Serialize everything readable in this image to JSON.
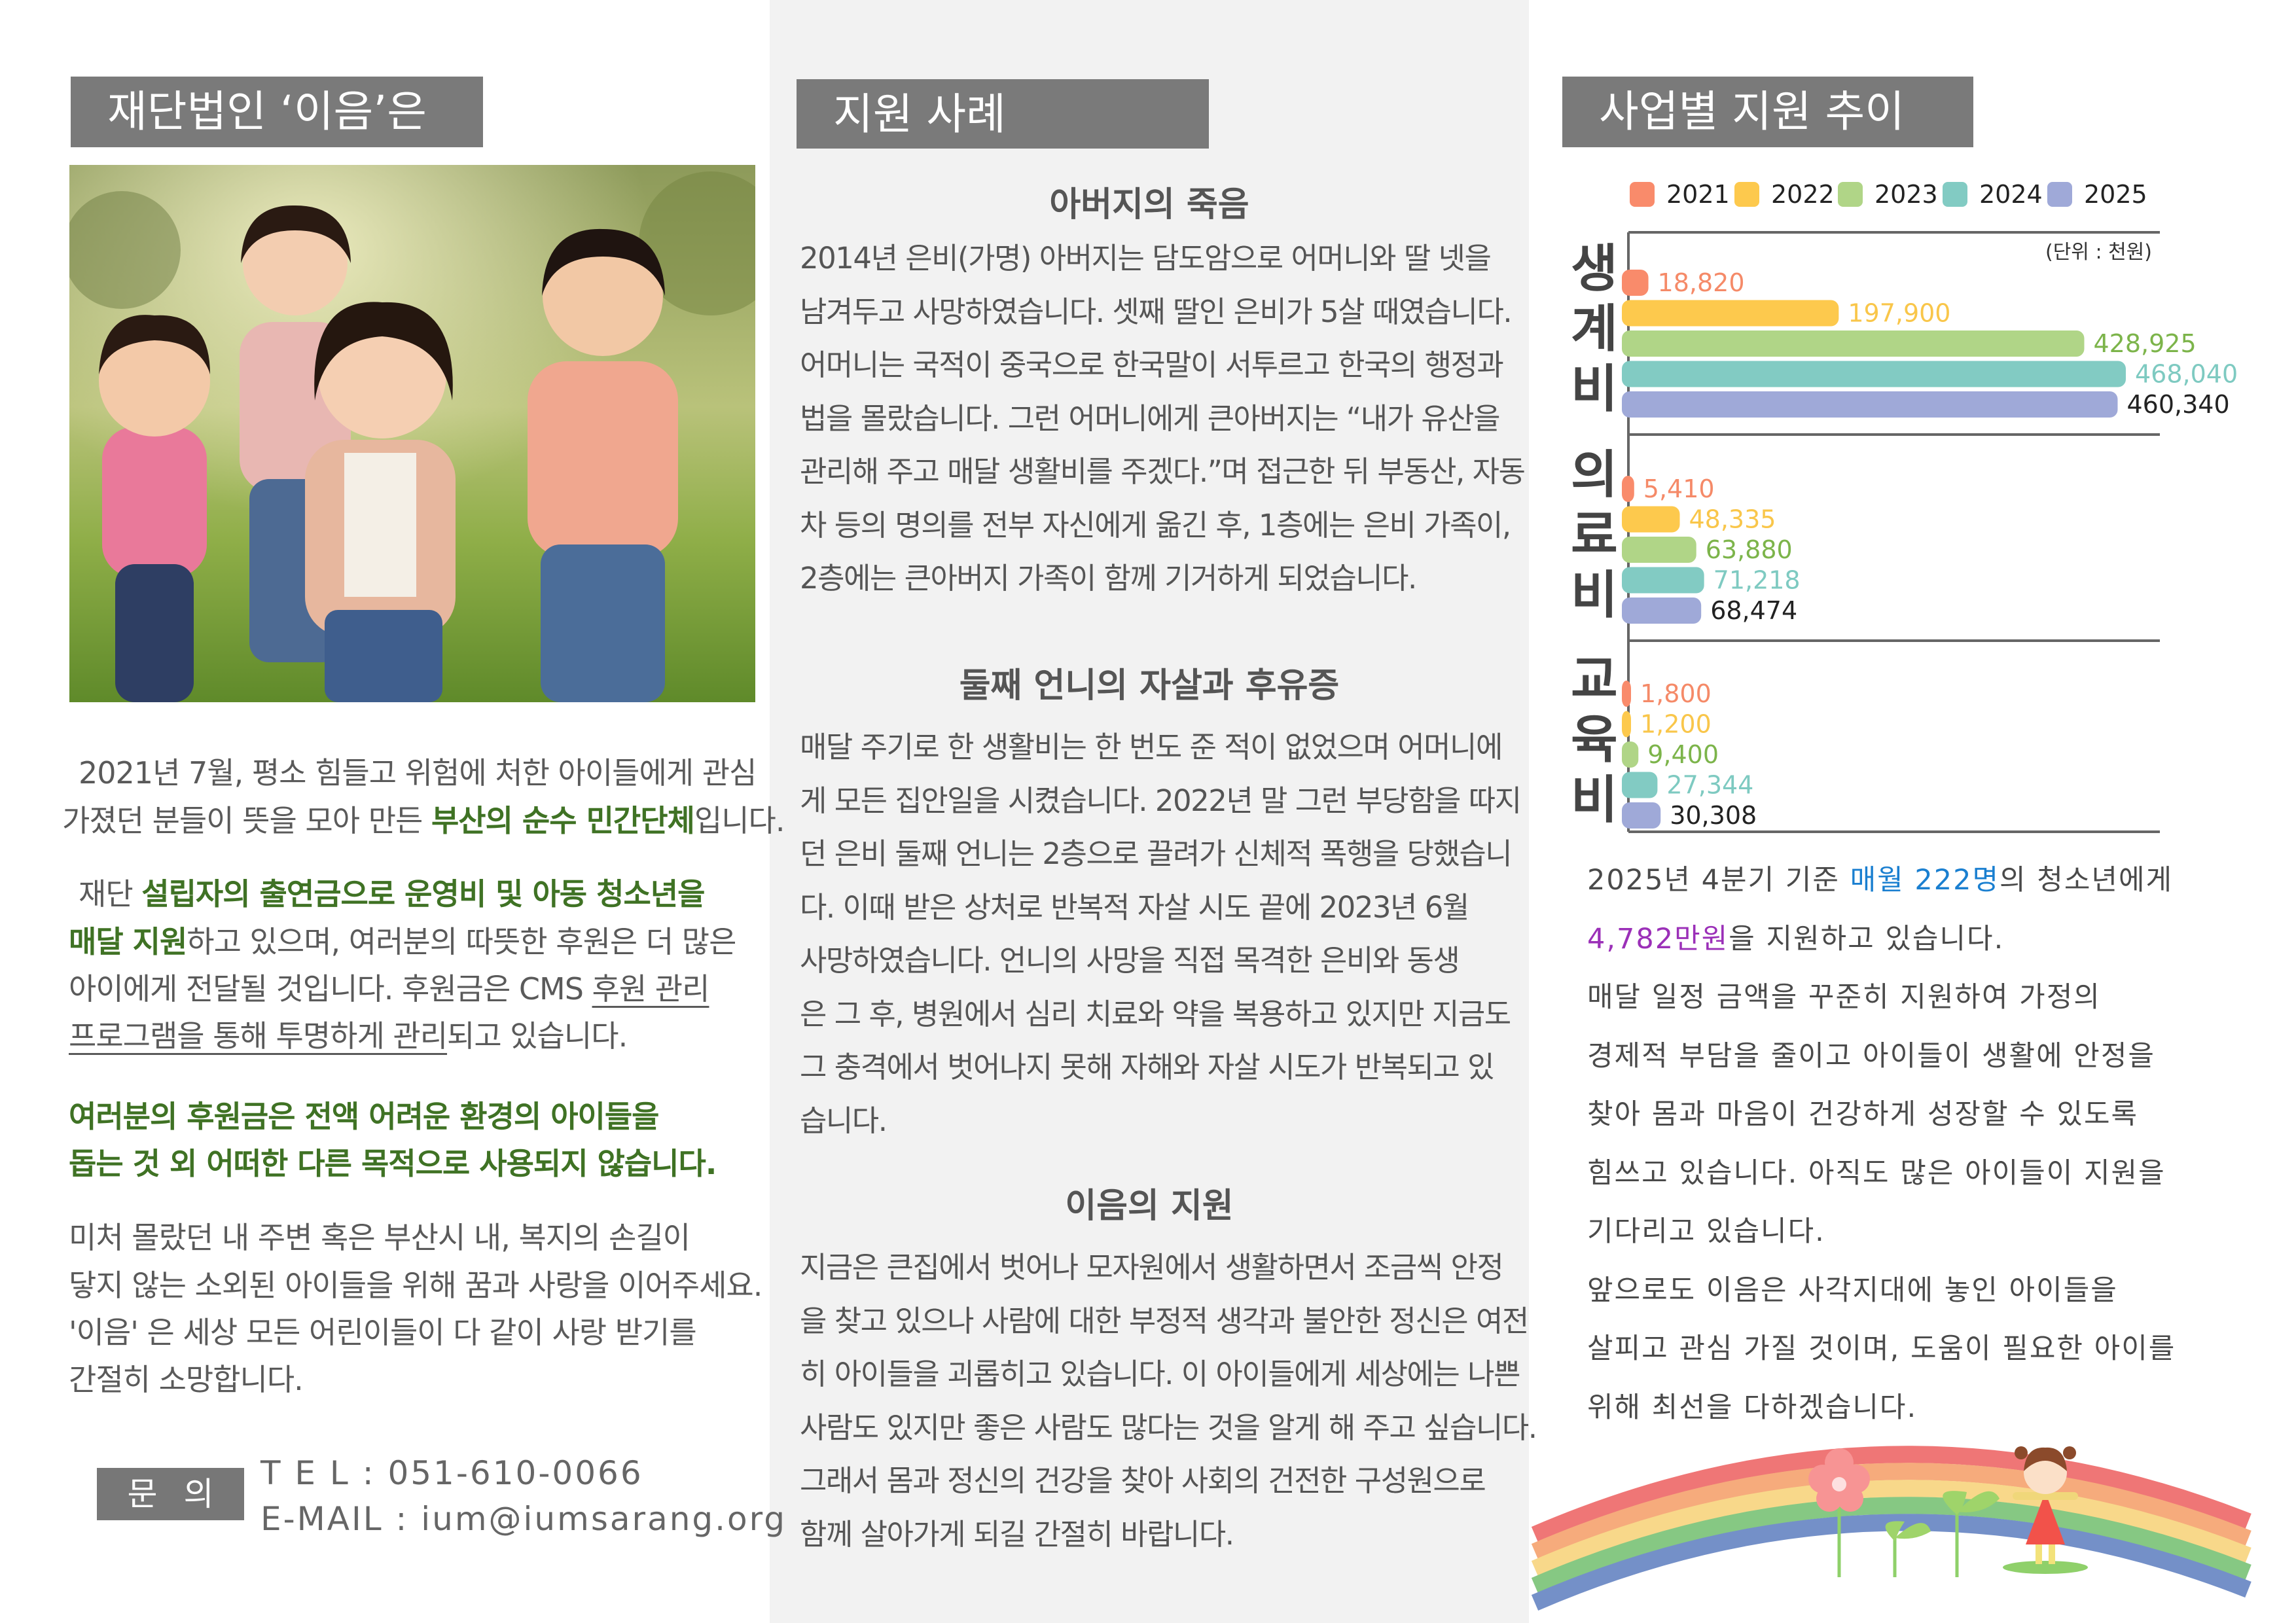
{
  "left": {
    "title": "재단법인 ‘이음’은",
    "photo_alt": "children-playing-photo",
    "paragraphs": [
      [
        [
          {
            "t": "2021년 7월, 평소 힘들고 위험에 처한 아이들에게 관심"
          }
        ],
        [
          {
            "t": "가졌던 분들이 뜻을 모아 만든 "
          },
          {
            "t": "부산의 순수 민간단체",
            "s": "g"
          },
          {
            "t": "입니다."
          }
        ]
      ],
      [
        [
          {
            "t": "재단 "
          },
          {
            "t": "설립자의 출연금으로 운영비 및 아동 청소년을",
            "s": "g"
          }
        ],
        [
          {
            "t": "매달 지원",
            "s": "g"
          },
          {
            "t": "하고 있으며, 여러분의 따뜻한 후원은 더 많은"
          }
        ],
        [
          {
            "t": "아이에게 전달될 것입니다. 후원금은 CMS "
          },
          {
            "t": "후원 관리",
            "s": "u"
          }
        ],
        [
          {
            "t": "프로그램을 통해 투명하게 관리",
            "s": "u"
          },
          {
            "t": "되고 있습니다."
          }
        ]
      ],
      [
        [
          {
            "t": "여러분의 후원금은 전액 어려운 환경의 아이들을",
            "s": "g"
          }
        ],
        [
          {
            "t": "돕는 것 외 어떠한 다른 목적으로 사용되지 않습니다.",
            "s": "g"
          }
        ]
      ],
      [
        [
          {
            "t": "미처 몰랐던 내 주변 혹은 부산시 내, 복지의 손길이"
          }
        ],
        [
          {
            "t": "닿지 않는 소외된 아이들을 위해 꿈과 사랑을 이어주세요."
          }
        ],
        [
          {
            "t": "'이음' 은 세상 모든 어린이들이 다 같이 사랑 받기를"
          }
        ],
        [
          {
            "t": "간절히 소망합니다."
          }
        ]
      ]
    ],
    "contact": {
      "label": "문의",
      "tel_label": "T E L",
      "tel": "051-610-0066",
      "email_label": "E-MAIL",
      "email": "ium@iumsarang.org"
    }
  },
  "middle": {
    "title": "지원 사례",
    "sections": [
      {
        "heading": "아버지의 죽음",
        "lines": [
          " 2014년 은비(가명) 아버지는 담도암으로 어머니와 딸 넷을",
          "남겨두고 사망하였습니다. 셋째 딸인 은비가 5살 때였습니다.",
          "어머니는 국적이 중국으로 한국말이 서투르고 한국의 행정과",
          "법을 몰랐습니다. 그런 어머니에게 큰아버지는 “내가 유산을",
          "관리해 주고 매달 생활비를 주겠다.”며 접근한 뒤 부동산, 자동",
          "차 등의 명의를 전부 자신에게 옮긴 후, 1층에는 은비 가족이,",
          "2층에는 큰아버지 가족이 함께 기거하게 되었습니다."
        ]
      },
      {
        "heading": "둘째 언니의 자살과 후유증",
        "lines": [
          " 매달 주기로 한 생활비는 한 번도 준 적이 없었으며 어머니에",
          "게 모든 집안일을 시켰습니다. 2022년 말 그런 부당함을 따지",
          "던 은비 둘째 언니는 2층으로 끌려가 신체적 폭행을 당했습니",
          "다. 이때 받은 상처로 반복적 자살 시도 끝에 2023년 6월",
          "사망하였습니다.  언니의 사망을 직접 목격한 은비와 동생",
          "은 그 후, 병원에서 심리 치료와 약을 복용하고 있지만 지금도",
          "그 충격에서 벗어나지 못해 자해와 자살 시도가 반복되고 있",
          "습니다."
        ]
      },
      {
        "heading": "이음의 지원",
        "lines": [
          " 지금은 큰집에서 벗어나 모자원에서 생활하면서 조금씩 안정",
          "을 찾고 있으나 사람에 대한 부정적 생각과 불안한 정신은 여전",
          "히 아이들을 괴롭히고 있습니다. 이 아이들에게 세상에는 나쁜",
          "사람도 있지만 좋은 사람도 많다는 것을 알게 해 주고 싶습니다.",
          "그래서 몸과 정신의 건강을 찾아 사회의 건전한 구성원으로",
          "함께 살아가게 되길 간절히 바랍니다."
        ]
      }
    ]
  },
  "right": {
    "title": "사업별 지원 추이",
    "paragraph_lines": [
      [
        {
          "t": "2025년 4분기 기준 "
        },
        {
          "t": "매월 222명",
          "s": "b"
        },
        {
          "t": "의 청소년에게"
        }
      ],
      [
        {
          "t": "4,782만원",
          "s": "p"
        },
        {
          "t": "을 지원하고 있습니다."
        }
      ],
      [
        {
          "t": "  매달 일정 금액을 꾸준히 지원하여 가정의"
        }
      ],
      [
        {
          "t": "경제적 부담을 줄이고 아이들이 생활에 안정을"
        }
      ],
      [
        {
          "t": "찾아 몸과 마음이 건강하게 성장할 수 있도록"
        }
      ],
      [
        {
          "t": "힘쓰고 있습니다. 아직도 많은 아이들이 지원을"
        }
      ],
      [
        {
          "t": "기다리고 있습니다."
        }
      ],
      [
        {
          "t": "  앞으로도 이음은 사각지대에 놓인 아이들을"
        }
      ],
      [
        {
          "t": "살피고 관심 가질 것이며, 도움이 필요한 아이를"
        }
      ],
      [
        {
          "t": "위해 최선을 다하겠습니다."
        }
      ]
    ],
    "illustration": "rainbow-girl-flower-sprouts"
  },
  "chart_data": {
    "type": "bar",
    "orientation": "horizontal",
    "unit_note": "(단위 : 천원)",
    "categories": [
      "생계비",
      "의료비",
      "교육비"
    ],
    "legend_position": "top",
    "grid": false,
    "series": [
      {
        "name": "2021",
        "color": "#f98b6b",
        "label_color": "#f58a68",
        "values": [
          18820,
          5410,
          1800
        ],
        "labels": [
          "18,820",
          "5,410",
          "1,800"
        ]
      },
      {
        "name": "2022",
        "color": "#fdc94d",
        "label_color": "#f9c64a",
        "values": [
          197900,
          48335,
          1200
        ],
        "labels": [
          "197,900",
          "48,335",
          "1,200"
        ]
      },
      {
        "name": "2023",
        "color": "#b0d587",
        "label_color": "#7cb44a",
        "values": [
          428925,
          63880,
          9400
        ],
        "labels": [
          "428,925",
          "63,880",
          "9,400"
        ]
      },
      {
        "name": "2024",
        "color": "#82cbc3",
        "label_color": "#7ecac1",
        "values": [
          468040,
          71218,
          27344
        ],
        "labels": [
          "468,040",
          "71,218",
          "27,344"
        ]
      },
      {
        "name": "2025",
        "color": "#9fa9d8",
        "label_color": "#222222",
        "values": [
          460340,
          68474,
          30308
        ],
        "labels": [
          "460,340",
          "68,474",
          "30,308"
        ]
      }
    ]
  }
}
